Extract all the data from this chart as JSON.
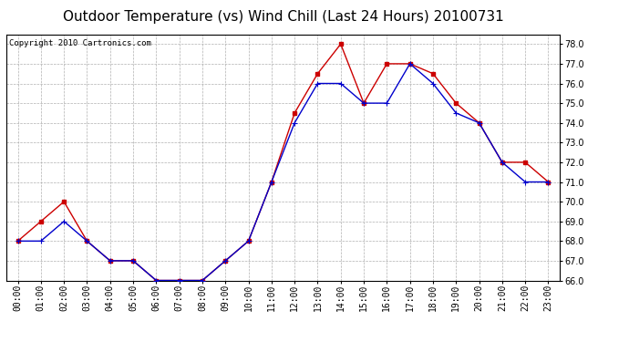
{
  "title": "Outdoor Temperature (vs) Wind Chill (Last 24 Hours) 20100731",
  "copyright": "Copyright 2010 Cartronics.com",
  "hours": [
    0,
    1,
    2,
    3,
    4,
    5,
    6,
    7,
    8,
    9,
    10,
    11,
    12,
    13,
    14,
    15,
    16,
    17,
    18,
    19,
    20,
    21,
    22,
    23
  ],
  "temp_red": [
    68.0,
    69.0,
    70.0,
    68.0,
    67.0,
    67.0,
    66.0,
    66.0,
    66.0,
    67.0,
    68.0,
    71.0,
    74.5,
    76.5,
    78.0,
    75.0,
    77.0,
    77.0,
    76.5,
    75.0,
    74.0,
    72.0,
    72.0,
    71.0
  ],
  "temp_blue": [
    68.0,
    68.0,
    69.0,
    68.0,
    67.0,
    67.0,
    66.0,
    66.0,
    66.0,
    67.0,
    68.0,
    71.0,
    74.0,
    76.0,
    76.0,
    75.0,
    75.0,
    77.0,
    76.0,
    74.5,
    74.0,
    72.0,
    71.0,
    71.0
  ],
  "ylim": [
    66.0,
    78.5
  ],
  "yticks": [
    66.0,
    67.0,
    68.0,
    69.0,
    70.0,
    71.0,
    72.0,
    73.0,
    74.0,
    75.0,
    76.0,
    77.0,
    78.0
  ],
  "red_color": "#cc0000",
  "blue_color": "#0000cc",
  "bg_color": "#ffffff",
  "plot_bg_color": "#ffffff",
  "grid_color": "#b0b0b0",
  "title_fontsize": 11,
  "tick_fontsize": 7,
  "copyright_fontsize": 6.5
}
